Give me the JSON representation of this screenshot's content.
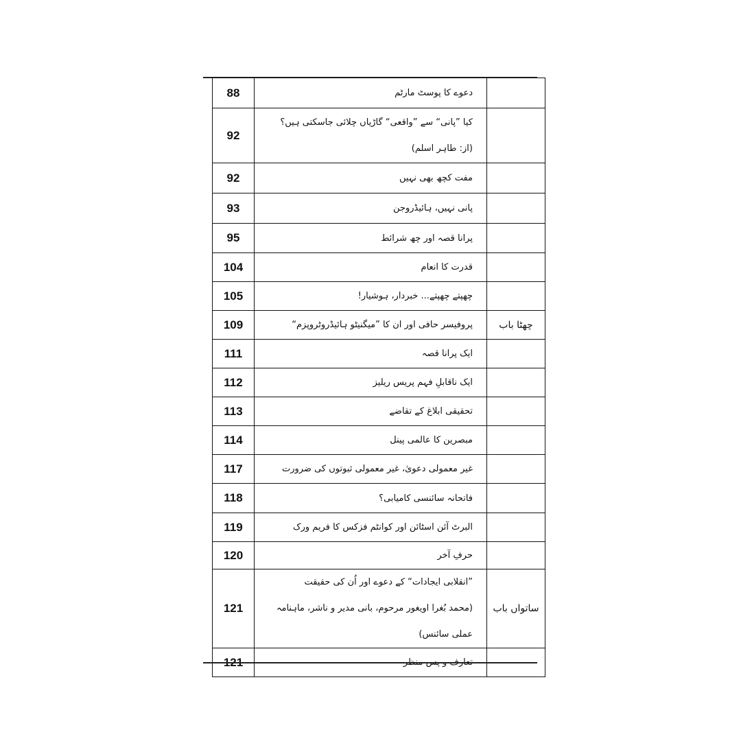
{
  "toc": {
    "rows": [
      {
        "page": "88",
        "title": [
          "دعوے کا پوسٹ مارٹم"
        ],
        "chapter": ""
      },
      {
        "page": "92",
        "title": [
          "کیا ”پانی“ سے ”واقعی“ گاڑیاں چلائی جاسکتی ہیں؟",
          "(از: طاہر اسلم)"
        ],
        "chapter": ""
      },
      {
        "page": "92",
        "title": [
          "مفت کچھ بھی نہیں"
        ],
        "chapter": ""
      },
      {
        "page": "93",
        "title": [
          "پانی نہیں، ہائیڈروجن"
        ],
        "chapter": ""
      },
      {
        "page": "95",
        "title": [
          "پرانا قصہ اور چھ شرائط"
        ],
        "chapter": ""
      },
      {
        "page": "104",
        "title": [
          "قدرت کا انعام"
        ],
        "chapter": ""
      },
      {
        "page": "105",
        "title": [
          "چھپتے چھپتے... خبردار، ہوشیار!"
        ],
        "chapter": ""
      },
      {
        "page": "109",
        "title": [
          "پروفیسر حافی اور ان کا ”میگنیٹو ہائیڈروٹروپزم“"
        ],
        "chapter": "چھٹا باب"
      },
      {
        "page": "111",
        "title": [
          "ایک پرانا قصہ"
        ],
        "chapter": ""
      },
      {
        "page": "112",
        "title": [
          "ایک ناقابلِ فہم پریس ریلیز"
        ],
        "chapter": ""
      },
      {
        "page": "113",
        "title": [
          "تحقیقی ابلاغ کے تقاضے"
        ],
        "chapter": ""
      },
      {
        "page": "114",
        "title": [
          "مبصرین کا عالمی پینل"
        ],
        "chapter": ""
      },
      {
        "page": "117",
        "title": [
          "غیر معمولی دعویٰ، غیر معمولی ثبوتوں کی ضرورت"
        ],
        "chapter": ""
      },
      {
        "page": "118",
        "title": [
          "فاتحانہ سائنسی کامیابی؟"
        ],
        "chapter": ""
      },
      {
        "page": "119",
        "title": [
          "البرٹ آئن اسٹائن اور کوانٹم فزکس کا فریم ورک"
        ],
        "chapter": ""
      },
      {
        "page": "120",
        "title": [
          "حرفِ آخر"
        ],
        "chapter": ""
      },
      {
        "page": "121",
        "title": [
          "”انقلابی ایجادات“ کے دعوے اور اُن کی حقیقت",
          "(محمد بُغرا اویغور مرحوم، بانی مدیر و ناشر، ماہنامہ عملی سائنس)"
        ],
        "chapter": "ساتواں باب"
      },
      {
        "page": "121",
        "title": [
          "تعارف و پس منظر"
        ],
        "chapter": ""
      }
    ]
  }
}
